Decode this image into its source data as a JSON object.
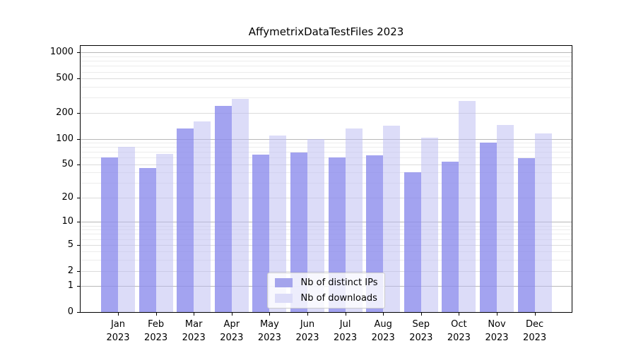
{
  "title": "AffymetrixDataTestFiles 2023",
  "chart_data": {
    "type": "bar",
    "title": "AffymetrixDataTestFiles 2023",
    "scale": "log10(1+v)",
    "categories": [
      "Jan",
      "Feb",
      "Mar",
      "Apr",
      "May",
      "Jun",
      "Jul",
      "Aug",
      "Sep",
      "Oct",
      "Nov",
      "Dec"
    ],
    "category_year": "2023",
    "series": [
      {
        "name": "Nb of distinct IPs",
        "color": "#a4a4ec",
        "bar_rgba": "rgba(140,140,236,0.8)",
        "values": [
          60,
          45,
          131,
          240,
          65,
          69,
          60,
          64,
          40,
          54,
          90,
          59
        ]
      },
      {
        "name": "Nb of downloads",
        "color": "#dcdcf8",
        "bar_rgba": "rgba(185,185,241,0.5)",
        "values": [
          81,
          66,
          159,
          289,
          109,
          100,
          131,
          142,
          103,
          274,
          145,
          115
        ]
      }
    ],
    "y_major_ticks": [
      0,
      1,
      2,
      5,
      10,
      20,
      50,
      100,
      200,
      500,
      1000
    ],
    "y_minor_gridlines": [
      3,
      4,
      6,
      7,
      8,
      9,
      30,
      40,
      60,
      70,
      80,
      90,
      300,
      400,
      600,
      700,
      800,
      900
    ],
    "ylim": [
      0,
      1200
    ],
    "grid": true,
    "xlabel": "",
    "ylabel": "",
    "legend_position": "lower center"
  },
  "legend": {
    "items": [
      {
        "label": "Nb of distinct IPs",
        "color": "#a4a4ec"
      },
      {
        "label": "Nb of downloads",
        "color": "#dcdcf8"
      }
    ]
  }
}
